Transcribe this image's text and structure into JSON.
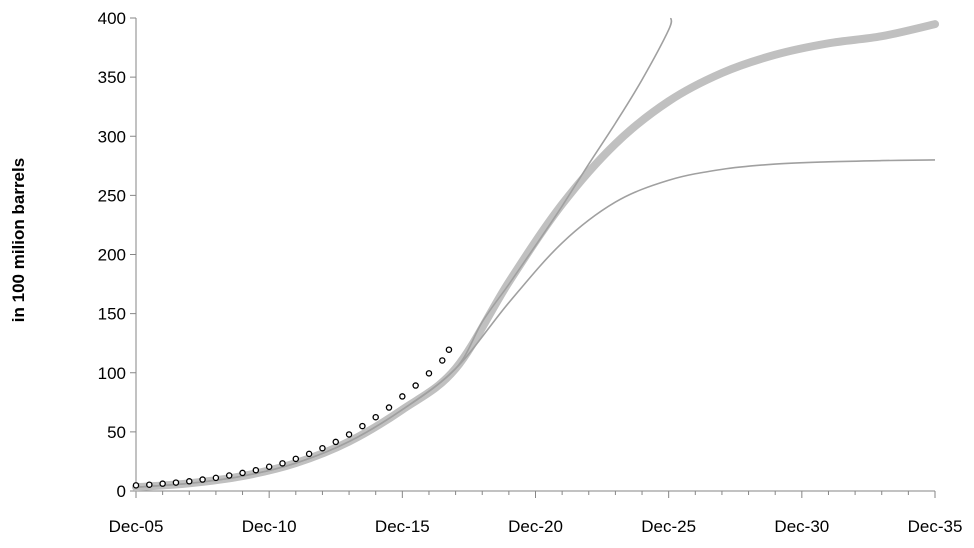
{
  "chart_data": {
    "type": "line",
    "title": "",
    "xlabel": "",
    "ylabel": "in 100 milion barrels",
    "x_tick_labels": [
      "Dec-05",
      "Dec-10",
      "Dec-15",
      "Dec-20",
      "Dec-25",
      "Dec-30",
      "Dec-35"
    ],
    "x_tick_dates": [
      "2005-12",
      "2010-12",
      "2015-12",
      "2020-12",
      "2025-12",
      "2030-12",
      "2035-12"
    ],
    "xlim": [
      "2005-12",
      "2035-12"
    ],
    "y_ticks": [
      0,
      50,
      100,
      150,
      200,
      250,
      300,
      350,
      400
    ],
    "ylim": [
      0,
      400
    ],
    "grid": false,
    "legend": "none",
    "colors": {
      "observed_marker": "#000000",
      "central_fit": "#c0c0c0",
      "bound_lines": "#a0a0a0"
    },
    "series": [
      {
        "style": "markers",
        "x": [
          "2005-12",
          "2006-06",
          "2006-12",
          "2007-06",
          "2007-12",
          "2008-06",
          "2008-12",
          "2009-06",
          "2009-12",
          "2010-06",
          "2010-12",
          "2011-06",
          "2011-12",
          "2012-06",
          "2012-12",
          "2013-06",
          "2013-12",
          "2014-06",
          "2014-12",
          "2015-06",
          "2015-12",
          "2016-06",
          "2016-12",
          "2017-06",
          "2017-09"
        ],
        "y": [
          4.8,
          5.3,
          6.2,
          7.1,
          8.2,
          9.7,
          11.1,
          13.1,
          15.3,
          17.6,
          20.5,
          23.4,
          27.2,
          31.4,
          36.2,
          41.5,
          47.8,
          54.9,
          62.4,
          70.6,
          80.0,
          89.2,
          99.5,
          110.4,
          119.5
        ]
      },
      {
        "style": "thick-line",
        "x": [
          "2005-12",
          "2007-12",
          "2009-12",
          "2011-12",
          "2013-12",
          "2015-12",
          "2017-12",
          "2019-12",
          "2021-12",
          "2023-12",
          "2025-12",
          "2027-12",
          "2029-12",
          "2031-12",
          "2033-12",
          "2035-12"
        ],
        "y": [
          3.2,
          6.5,
          12.6,
          23.6,
          41.8,
          68.8,
          103.5,
          176.7,
          242.5,
          293.6,
          329.6,
          353.5,
          368.9,
          378.6,
          384.6,
          394.8
        ]
      },
      {
        "style": "thin-line",
        "x": [
          "2005-12",
          "2007-12",
          "2009-12",
          "2011-12",
          "2013-12",
          "2015-12",
          "2017-12",
          "2018-12",
          "2019-12",
          "2020-12",
          "2021-12",
          "2022-12",
          "2023-12",
          "2024-12",
          "2025-12",
          "2026-01"
        ],
        "y": [
          3.2,
          6.5,
          12.6,
          23.6,
          41.8,
          68.8,
          103.5,
          143.0,
          174.8,
          207.5,
          241.0,
          276.5,
          311.0,
          347.8,
          390.0,
          400.0
        ]
      },
      {
        "style": "thin-line",
        "x": [
          "2005-12",
          "2007-12",
          "2009-12",
          "2011-12",
          "2013-12",
          "2015-12",
          "2017-12",
          "2019-12",
          "2021-12",
          "2023-12",
          "2025-12",
          "2027-12",
          "2029-12",
          "2031-12",
          "2033-12",
          "2035-12"
        ],
        "y": [
          3.2,
          6.5,
          12.6,
          23.6,
          41.8,
          68.8,
          103.5,
          159.3,
          209.8,
          244.3,
          262.8,
          272.0,
          276.5,
          278.4,
          279.4,
          280.0
        ]
      }
    ]
  }
}
